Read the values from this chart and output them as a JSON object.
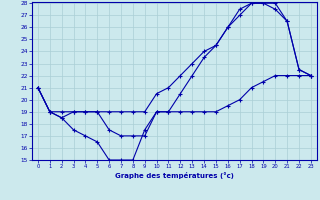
{
  "line1": {
    "x": [
      0,
      1,
      2,
      3,
      4,
      5,
      6,
      7,
      8,
      9,
      10,
      11,
      12,
      13,
      14,
      15,
      16,
      17,
      18,
      19,
      20,
      21,
      22,
      23
    ],
    "y": [
      21,
      19,
      19,
      19,
      19,
      19,
      19,
      19,
      19,
      19,
      20.5,
      21,
      22,
      23,
      24,
      24.5,
      26,
      27,
      28,
      28,
      28,
      26.5,
      22.5,
      22
    ]
  },
  "line2": {
    "x": [
      0,
      1,
      2,
      3,
      4,
      5,
      6,
      7,
      8,
      9,
      10,
      11,
      12,
      13,
      14,
      15,
      16,
      17,
      18,
      19,
      20,
      21,
      22,
      23
    ],
    "y": [
      21,
      19,
      18.5,
      19,
      19,
      19,
      17.5,
      17,
      17,
      17,
      19,
      19,
      20.5,
      22,
      23.5,
      24.5,
      26,
      27.5,
      28,
      28,
      27.5,
      26.5,
      22.5,
      22
    ]
  },
  "line3": {
    "x": [
      0,
      1,
      2,
      3,
      4,
      5,
      6,
      7,
      8,
      9,
      10,
      11,
      12,
      13,
      14,
      15,
      16,
      17,
      18,
      19,
      20,
      21,
      22,
      23
    ],
    "y": [
      21,
      19,
      18.5,
      17.5,
      17,
      16.5,
      15,
      15,
      15,
      17.5,
      19,
      19,
      19,
      19,
      19,
      19,
      19.5,
      20,
      21,
      21.5,
      22,
      22,
      22,
      22
    ]
  },
  "xlabel": "Graphe des températures (°c)",
  "ylim": [
    15,
    28
  ],
  "xlim": [
    -0.5,
    23.5
  ],
  "yticks": [
    15,
    16,
    17,
    18,
    19,
    20,
    21,
    22,
    23,
    24,
    25,
    26,
    27,
    28
  ],
  "xticks": [
    0,
    1,
    2,
    3,
    4,
    5,
    6,
    7,
    8,
    9,
    10,
    11,
    12,
    13,
    14,
    15,
    16,
    17,
    18,
    19,
    20,
    21,
    22,
    23
  ],
  "bg_color": "#cce9ed",
  "grid_color": "#aacfd6",
  "line_color": "#0000aa",
  "axis_color": "#0000aa",
  "label_color": "#0000aa"
}
